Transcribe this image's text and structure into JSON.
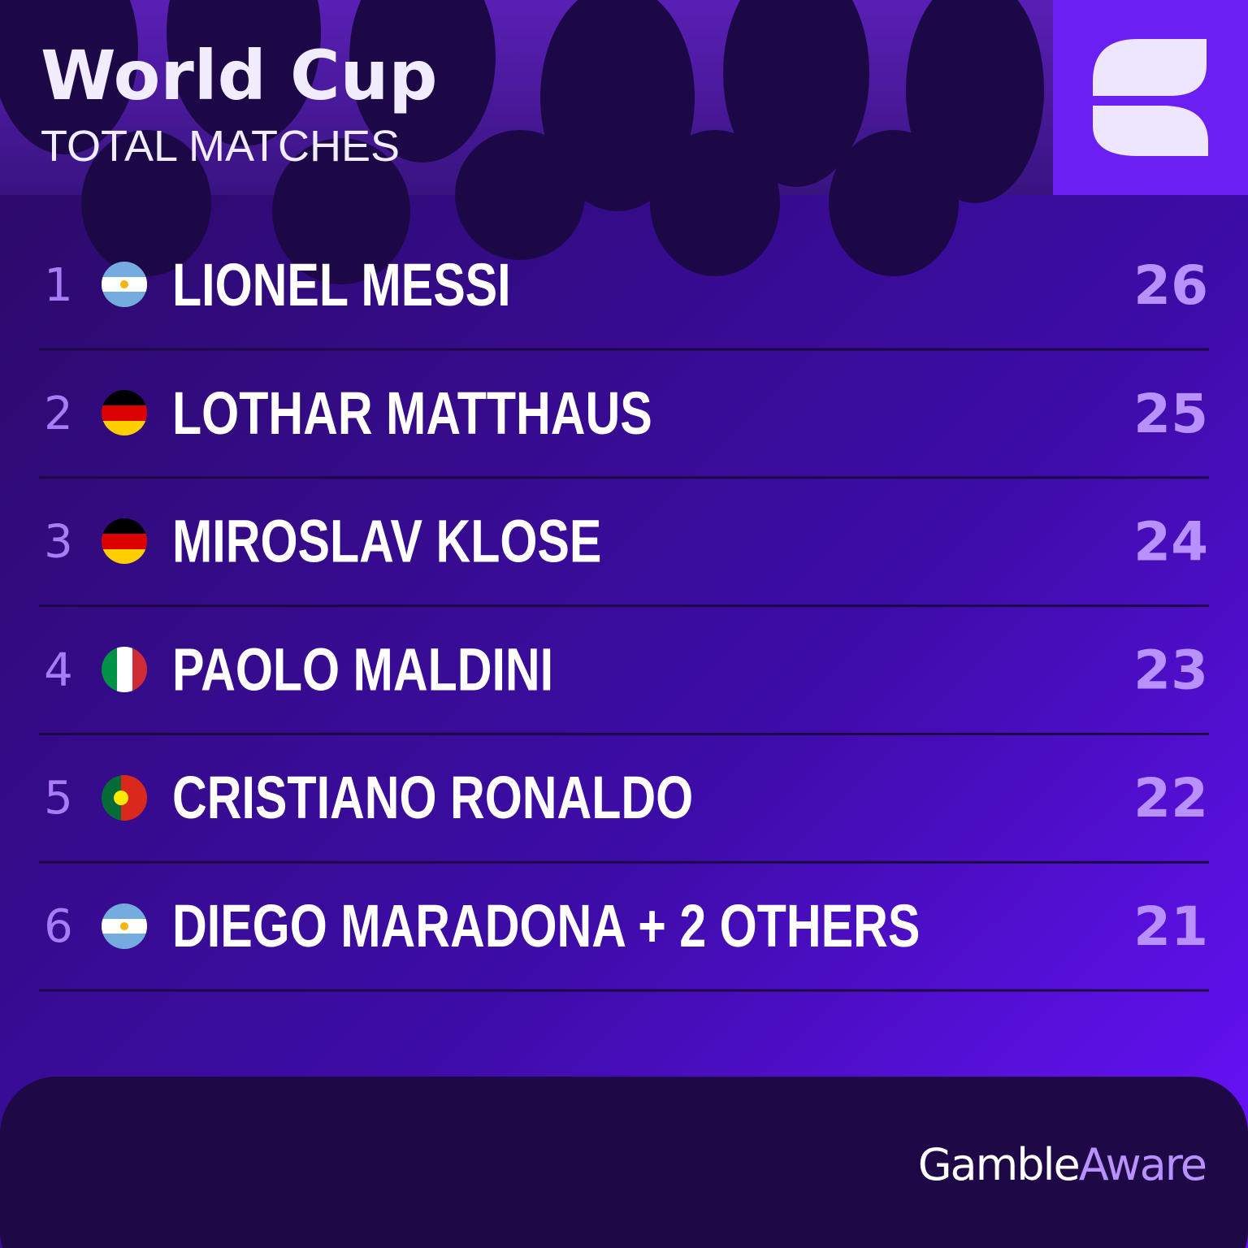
{
  "header": {
    "title": "World Cup",
    "subtitle": "TOTAL MATCHES"
  },
  "table": {
    "rows": [
      {
        "rank": 1,
        "name": "LIONEL MESSI",
        "value": 26
      },
      {
        "rank": 2,
        "name": "LOTHAR MATTHAUS",
        "value": 25
      },
      {
        "rank": 3,
        "name": "MIROSLAV KLOSE",
        "value": 24
      },
      {
        "rank": 4,
        "name": "PAOLO MALDINI",
        "value": 23
      },
      {
        "rank": 5,
        "name": "CRISTIANO RONALDO",
        "value": 22
      },
      {
        "rank": 6,
        "name": "DIEGO MARADONA + 2 OTHERS",
        "value": 21
      }
    ]
  },
  "footer": {
    "logo": [
      "Gamble",
      "Aware"
    ]
  }
}
